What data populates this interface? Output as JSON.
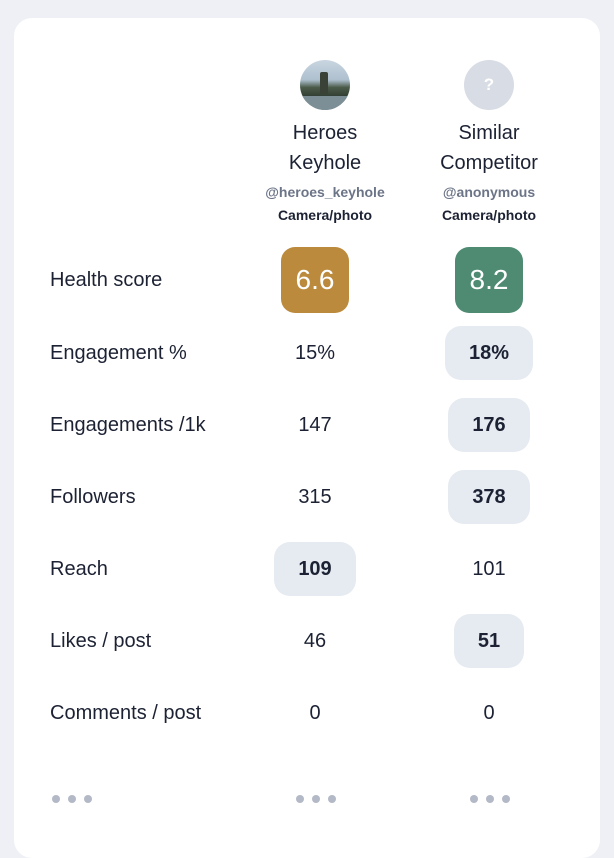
{
  "colors": {
    "score_low": "#bc8a3c",
    "score_high": "#4e8b72",
    "highlight": "#e6ebf1"
  },
  "profiles": [
    {
      "name": "Heroes\nKeyhole",
      "handle": "@heroes_keyhole",
      "category": "Camera/photo",
      "avatar": "profile-photo"
    },
    {
      "name": "Similar\nCompetitor",
      "handle": "@anonymous",
      "category": "Camera/photo",
      "avatar": "question-mark",
      "avatar_glyph": "?"
    }
  ],
  "metrics": [
    {
      "label": "Health score",
      "a": "6.6",
      "b": "8.2",
      "winner": "b"
    },
    {
      "label": "Engagement %",
      "a": "15%",
      "b": "18%",
      "winner": "b"
    },
    {
      "label": "Engagements /1k",
      "a": "147",
      "b": "176",
      "winner": "b"
    },
    {
      "label": "Followers",
      "a": "315",
      "b": "378",
      "winner": "b"
    },
    {
      "label": "Reach",
      "a": "109",
      "b": "101",
      "winner": "a"
    },
    {
      "label": "Likes / post",
      "a": "46",
      "b": "51",
      "winner": "b"
    },
    {
      "label": "Comments / post",
      "a": "0",
      "b": "0",
      "winner": "none"
    }
  ],
  "more_icons": [
    "more-dots-icon",
    "more-dots-icon",
    "more-dots-icon"
  ]
}
